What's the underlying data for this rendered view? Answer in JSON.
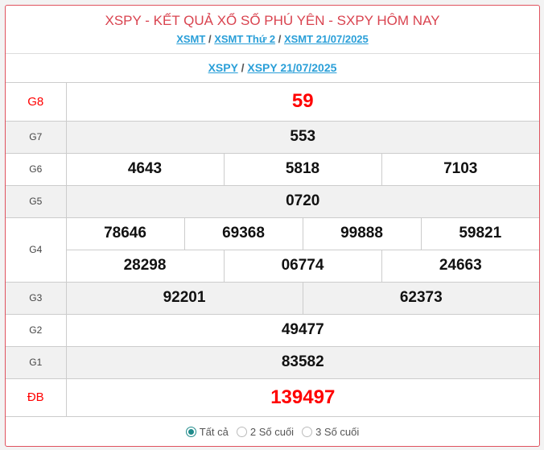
{
  "header": {
    "title": "XSPY - KẾT QUẢ XỔ SỐ PHÚ YÊN - SXPY HÔM NAY",
    "links": [
      "XSMT",
      "XSMT Thứ 2",
      "XSMT 21/07/2025"
    ]
  },
  "sub": {
    "links": [
      "XSPY",
      "XSPY 21/07/2025"
    ]
  },
  "sep": "/",
  "prizes": {
    "g8": {
      "label": "G8",
      "values": [
        "59"
      ]
    },
    "g7": {
      "label": "G7",
      "values": [
        "553"
      ]
    },
    "g6": {
      "label": "G6",
      "values": [
        "4643",
        "5818",
        "7103"
      ]
    },
    "g5": {
      "label": "G5",
      "values": [
        "0720"
      ]
    },
    "g4": {
      "label": "G4",
      "values": [
        "78646",
        "69368",
        "99888",
        "59821",
        "28298",
        "06774",
        "24663"
      ]
    },
    "g3": {
      "label": "G3",
      "values": [
        "92201",
        "62373"
      ]
    },
    "g2": {
      "label": "G2",
      "values": [
        "49477"
      ]
    },
    "g1": {
      "label": "G1",
      "values": [
        "83582"
      ]
    },
    "db": {
      "label": "ĐB",
      "values": [
        "139497"
      ]
    }
  },
  "filter": {
    "options": [
      "Tất cả",
      "2 Số cuối",
      "3 Số cuối"
    ],
    "selected": "Tất cả"
  },
  "colors": {
    "accent": "#e0525e",
    "link": "#2a9fd8",
    "special": "#ff0000",
    "radio": "#1f8a8a"
  }
}
